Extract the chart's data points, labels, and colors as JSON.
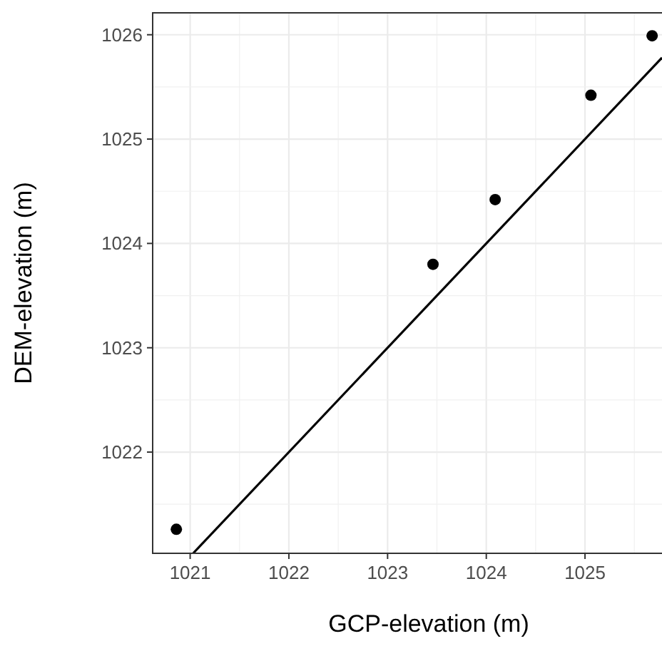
{
  "chart_data": {
    "type": "scatter",
    "xlabel": "GCP-elevation (m)",
    "ylabel": "DEM-elevation (m)",
    "xlim": [
      1020.62,
      1025.78
    ],
    "ylim": [
      1021.03,
      1026.21
    ],
    "xticks": [
      1021,
      1022,
      1023,
      1024,
      1025
    ],
    "yticks": [
      1022,
      1023,
      1024,
      1025,
      1026
    ],
    "grid": true,
    "series": [
      {
        "marker": "circle",
        "color": "#000000",
        "x": [
          1020.86,
          1023.46,
          1024.09,
          1025.06,
          1025.68
        ],
        "values": [
          1021.26,
          1023.8,
          1024.42,
          1025.42,
          1025.99
        ]
      },
      {
        "type": "line",
        "color": "#000000",
        "line_style": "solid",
        "x": [
          1021.03,
          1025.78
        ],
        "values": [
          1021.03,
          1025.78
        ]
      }
    ]
  }
}
